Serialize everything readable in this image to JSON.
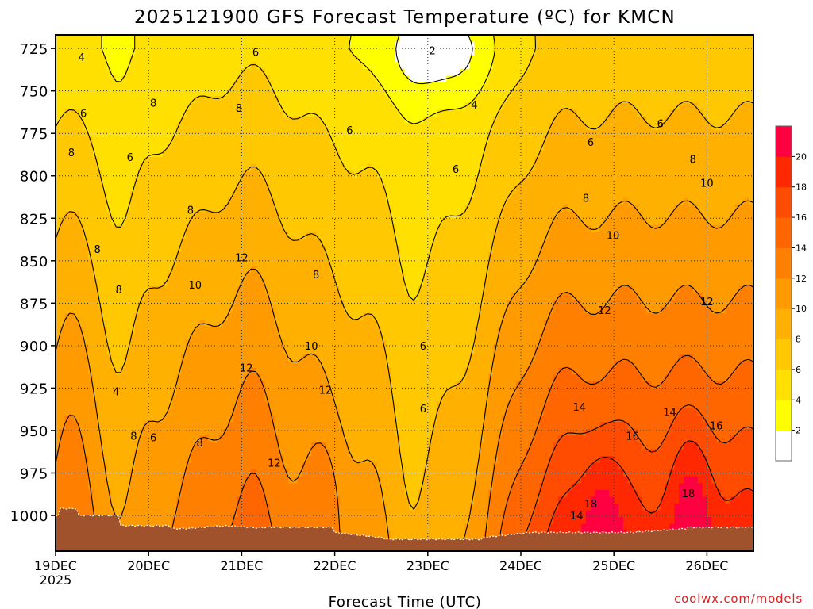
{
  "title": "2025121900 GFS Forecast Temperature (ºC) for KMCN",
  "xlabel": "Forecast Time (UTC)",
  "credit": "coolwx.com/models",
  "chart_data": {
    "type": "heatmap",
    "title": "2025121900 GFS Forecast Temperature (ºC) for KMCN",
    "xlabel": "Forecast Time (UTC)",
    "ylabel": "",
    "x_ticks": [
      "19DEC",
      "20DEC",
      "21DEC",
      "22DEC",
      "23DEC",
      "24DEC",
      "25DEC",
      "26DEC"
    ],
    "x_first_year": "2025",
    "y_ticks": [
      725,
      750,
      775,
      800,
      825,
      850,
      875,
      900,
      925,
      950,
      975,
      1000
    ],
    "y_range": [
      1021,
      717
    ],
    "x_range_days": [
      0,
      7.5
    ],
    "colorbar_ticks": [
      2,
      4,
      6,
      8,
      10,
      12,
      14,
      16,
      18,
      20
    ],
    "colorbar_colors": [
      "#ffffff",
      "#ffff00",
      "#ffe000",
      "#ffc800",
      "#ffb000",
      "#ff9a00",
      "#ff8000",
      "#ff6600",
      "#ff4c00",
      "#ff2800",
      "#ff0040"
    ],
    "contour_levels": [
      2,
      4,
      6,
      8,
      10,
      12,
      14,
      16,
      18
    ],
    "contour_labels": [
      {
        "day": 0.28,
        "p": 730,
        "text": "4"
      },
      {
        "day": 0.3,
        "p": 763,
        "text": "6"
      },
      {
        "day": 0.17,
        "p": 786,
        "text": "8"
      },
      {
        "day": 0.8,
        "p": 789,
        "text": "6"
      },
      {
        "day": 1.05,
        "p": 757,
        "text": "8"
      },
      {
        "day": 1.97,
        "p": 760,
        "text": "8"
      },
      {
        "day": 2.15,
        "p": 727,
        "text": "6"
      },
      {
        "day": 3.16,
        "p": 773,
        "text": "6"
      },
      {
        "day": 4.05,
        "p": 726,
        "text": "2"
      },
      {
        "day": 4.5,
        "p": 758,
        "text": "4"
      },
      {
        "day": 4.3,
        "p": 796,
        "text": "6"
      },
      {
        "day": 5.75,
        "p": 780,
        "text": "6"
      },
      {
        "day": 6.5,
        "p": 769,
        "text": "6"
      },
      {
        "day": 6.85,
        "p": 790,
        "text": "8"
      },
      {
        "day": 7.0,
        "p": 804,
        "text": "10"
      },
      {
        "day": 5.7,
        "p": 813,
        "text": "8"
      },
      {
        "day": 1.45,
        "p": 820,
        "text": "8"
      },
      {
        "day": 0.45,
        "p": 843,
        "text": "8"
      },
      {
        "day": 0.68,
        "p": 867,
        "text": "8"
      },
      {
        "day": 1.5,
        "p": 864,
        "text": "10"
      },
      {
        "day": 2.0,
        "p": 848,
        "text": "12"
      },
      {
        "day": 2.8,
        "p": 858,
        "text": "8"
      },
      {
        "day": 2.75,
        "p": 900,
        "text": "10"
      },
      {
        "day": 2.05,
        "p": 913,
        "text": "12"
      },
      {
        "day": 2.9,
        "p": 926,
        "text": "12"
      },
      {
        "day": 2.35,
        "p": 969,
        "text": "12"
      },
      {
        "day": 0.65,
        "p": 927,
        "text": "4"
      },
      {
        "day": 0.84,
        "p": 953,
        "text": "8"
      },
      {
        "day": 1.05,
        "p": 954,
        "text": "6"
      },
      {
        "day": 1.55,
        "p": 957,
        "text": "8"
      },
      {
        "day": 3.95,
        "p": 900,
        "text": "6"
      },
      {
        "day": 3.95,
        "p": 937,
        "text": "6"
      },
      {
        "day": 5.9,
        "p": 879,
        "text": "12"
      },
      {
        "day": 5.99,
        "p": 835,
        "text": "10"
      },
      {
        "day": 7.0,
        "p": 874,
        "text": "12"
      },
      {
        "day": 6.6,
        "p": 939,
        "text": "14"
      },
      {
        "day": 5.63,
        "p": 936,
        "text": "14"
      },
      {
        "day": 6.2,
        "p": 953,
        "text": "16"
      },
      {
        "day": 7.1,
        "p": 947,
        "text": "16"
      },
      {
        "day": 5.75,
        "p": 993,
        "text": "18"
      },
      {
        "day": 5.6,
        "p": 1000,
        "text": "14"
      },
      {
        "day": 6.8,
        "p": 987,
        "text": "18"
      }
    ],
    "ground_colour": "#a0522d",
    "grid": "dotted"
  }
}
